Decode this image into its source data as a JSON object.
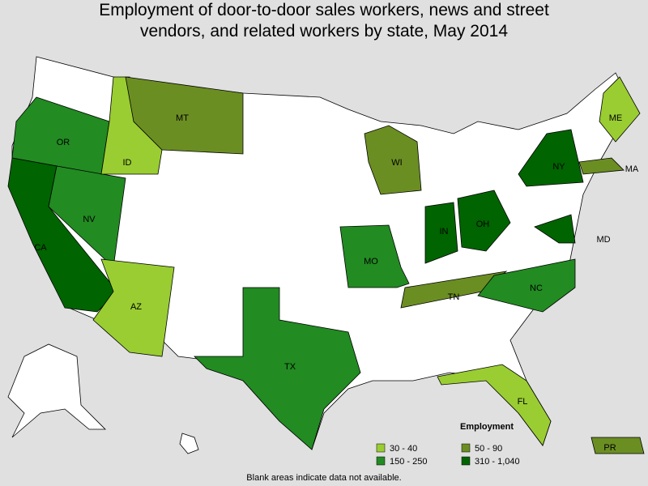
{
  "title": "Employment of door-to-door sales workers, news and street vendors, and related workers by state, May 2014",
  "states": [
    {
      "label": "OR",
      "color": "#228b22"
    },
    {
      "label": "CA",
      "color": "#006400"
    },
    {
      "label": "NV",
      "color": "#228b22"
    },
    {
      "label": "ID",
      "color": "#9acd32"
    },
    {
      "label": "MT",
      "color": "#6b8e23"
    },
    {
      "label": "AZ",
      "color": "#9acd32"
    },
    {
      "label": "TX",
      "color": "#228b22"
    },
    {
      "label": "MO",
      "color": "#228b22"
    },
    {
      "label": "WI",
      "color": "#6b8e23"
    },
    {
      "label": "IN",
      "color": "#006400"
    },
    {
      "label": "OH",
      "color": "#006400"
    },
    {
      "label": "NY",
      "color": "#006400"
    },
    {
      "label": "MD",
      "color": "#006400"
    },
    {
      "label": "TN",
      "color": "#6b8e23"
    },
    {
      "label": "NC",
      "color": "#228b22"
    },
    {
      "label": "MA",
      "color": "#6b8e23"
    },
    {
      "label": "ME",
      "color": "#9acd32"
    },
    {
      "label": "FL",
      "color": "#9acd32"
    },
    {
      "label": "PR",
      "color": "#6b8e23"
    }
  ],
  "legend": {
    "title": "Employment",
    "items": [
      {
        "label": "30 - 40",
        "color": "#9acd32"
      },
      {
        "label": "50 - 90",
        "color": "#6b8e23"
      },
      {
        "label": "150 - 250",
        "color": "#228b22"
      },
      {
        "label": "310 - 1,040",
        "color": "#006400"
      }
    ]
  },
  "note": "Blank areas indicate data not available."
}
